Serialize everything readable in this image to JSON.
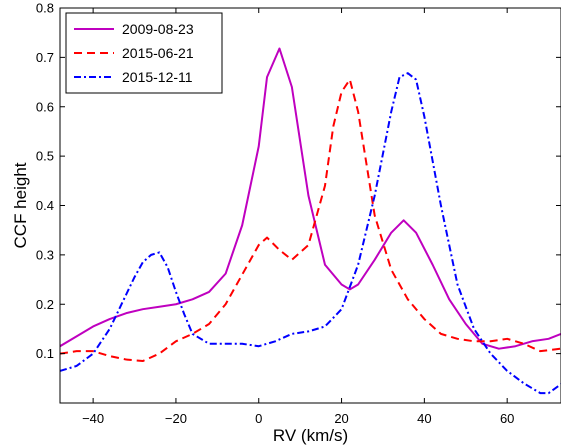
{
  "chart_data": {
    "type": "line",
    "title": "",
    "xlabel": "RV (km/s)",
    "ylabel": "CCF height",
    "xlim": [
      -48,
      73
    ],
    "ylim": [
      0.0,
      0.8
    ],
    "xticks": [
      -40,
      -20,
      0,
      20,
      40,
      60
    ],
    "xtick_labels": [
      "−40",
      "−20",
      "0",
      "20",
      "40",
      "60"
    ],
    "yticks": [
      0.1,
      0.2,
      0.3,
      0.4,
      0.5,
      0.6,
      0.7,
      0.8
    ],
    "ytick_labels": [
      "0.1",
      "0.2",
      "0.3",
      "0.4",
      "0.5",
      "0.6",
      "0.7",
      "0.8"
    ],
    "grid": false,
    "legend_position": "top-left",
    "series": [
      {
        "name": "2009-08-23",
        "color": "#bf00bf",
        "dash": "solid",
        "x": [
          -48,
          -44,
          -40,
          -36,
          -32,
          -28,
          -24,
          -20,
          -16,
          -12,
          -8,
          -4,
          0,
          2,
          5,
          8,
          12,
          16,
          20,
          22,
          24,
          28,
          32,
          35,
          38,
          42,
          46,
          50,
          54,
          58,
          62,
          66,
          70,
          73
        ],
        "y": [
          0.115,
          0.135,
          0.155,
          0.17,
          0.182,
          0.19,
          0.195,
          0.2,
          0.21,
          0.225,
          0.262,
          0.36,
          0.52,
          0.66,
          0.718,
          0.64,
          0.42,
          0.28,
          0.24,
          0.23,
          0.24,
          0.29,
          0.345,
          0.37,
          0.345,
          0.28,
          0.21,
          0.16,
          0.12,
          0.11,
          0.115,
          0.125,
          0.13,
          0.14
        ]
      },
      {
        "name": "2015-06-21",
        "color": "#ff0000",
        "dash": "dashed",
        "x": [
          -48,
          -44,
          -40,
          -36,
          -32,
          -28,
          -24,
          -20,
          -16,
          -12,
          -8,
          -4,
          0,
          2,
          5,
          8,
          12,
          16,
          18,
          20,
          22,
          24,
          28,
          32,
          36,
          40,
          44,
          48,
          52,
          56,
          60,
          64,
          68,
          73
        ],
        "y": [
          0.1,
          0.105,
          0.105,
          0.095,
          0.088,
          0.085,
          0.1,
          0.125,
          0.14,
          0.16,
          0.2,
          0.26,
          0.32,
          0.335,
          0.31,
          0.29,
          0.32,
          0.44,
          0.56,
          0.63,
          0.655,
          0.59,
          0.38,
          0.27,
          0.21,
          0.17,
          0.14,
          0.13,
          0.125,
          0.125,
          0.13,
          0.12,
          0.105,
          0.11
        ]
      },
      {
        "name": "2015-12-11",
        "color": "#0000ff",
        "dash": "dashdot",
        "x": [
          -48,
          -44,
          -40,
          -36,
          -32,
          -30,
          -28,
          -26,
          -24,
          -22,
          -20,
          -18,
          -16,
          -12,
          -8,
          -4,
          0,
          4,
          8,
          12,
          16,
          20,
          24,
          28,
          32,
          34,
          36,
          38,
          40,
          44,
          48,
          52,
          56,
          60,
          64,
          68,
          70,
          73
        ],
        "y": [
          0.065,
          0.075,
          0.1,
          0.15,
          0.22,
          0.255,
          0.285,
          0.3,
          0.305,
          0.275,
          0.225,
          0.18,
          0.14,
          0.12,
          0.12,
          0.12,
          0.115,
          0.125,
          0.14,
          0.145,
          0.155,
          0.19,
          0.28,
          0.42,
          0.59,
          0.66,
          0.668,
          0.655,
          0.58,
          0.4,
          0.24,
          0.15,
          0.1,
          0.065,
          0.04,
          0.02,
          0.02,
          0.038
        ]
      }
    ]
  }
}
